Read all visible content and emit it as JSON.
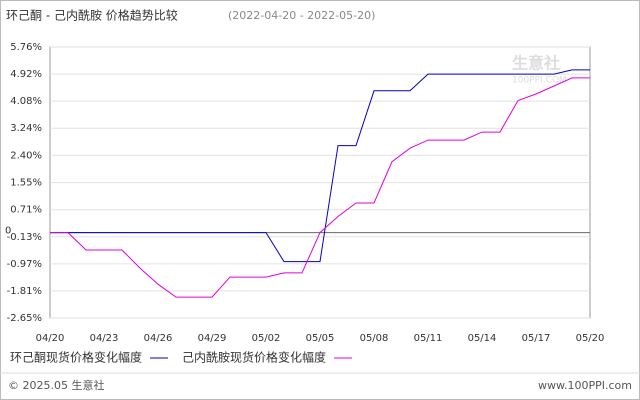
{
  "chart_data": {
    "type": "line",
    "title": "环己酮 - 己内酰胺 价格趋势比较",
    "subtitle": "(2022-04-20 - 2022-05-20)",
    "categories": [
      "04/20",
      null,
      null,
      "04/23",
      null,
      null,
      "04/26",
      null,
      null,
      "04/29",
      null,
      null,
      "05/02",
      null,
      null,
      "05/05",
      null,
      null,
      "05/08",
      null,
      null,
      "05/11",
      null,
      null,
      "05/14",
      null,
      null,
      "05/17",
      null,
      null,
      "05/20"
    ],
    "series": [
      {
        "name": "环己酮现货价格变化幅度",
        "color": "#0000cc",
        "values": [
          0,
          0,
          0,
          0,
          0,
          0,
          0,
          0,
          0,
          0,
          0,
          0,
          0,
          -0.9,
          -0.9,
          -0.9,
          2.7,
          2.7,
          4.4,
          4.4,
          4.4,
          4.92,
          4.92,
          4.92,
          4.92,
          4.92,
          4.92,
          4.92,
          4.92,
          5.05,
          5.05
        ]
      },
      {
        "name": "己内酰胺现货价格变化幅度",
        "color": "#e000e0",
        "values": [
          0,
          0,
          -0.54,
          -0.54,
          -0.54,
          -1.1,
          -1.6,
          -2.0,
          -2.0,
          -2.0,
          -1.38,
          -1.38,
          -1.38,
          -1.25,
          -1.25,
          0,
          0.5,
          0.92,
          0.92,
          2.2,
          2.62,
          2.87,
          2.87,
          2.87,
          3.12,
          3.12,
          4.1,
          4.3,
          4.55,
          4.8,
          4.8
        ]
      }
    ],
    "ylim": [
      -2.65,
      5.76
    ],
    "yticks": [
      {
        "value": -2.65,
        "label": "-2.65%"
      },
      {
        "value": -1.81,
        "label": "-1.81%"
      },
      {
        "value": -0.97,
        "label": "-0.97%"
      },
      {
        "value": -0.13,
        "label": "-0.13%"
      },
      {
        "value": 0.71,
        "label": "0.71%"
      },
      {
        "value": 1.55,
        "label": "1.55%"
      },
      {
        "value": 2.4,
        "label": "2.40%"
      },
      {
        "value": 3.24,
        "label": "3.24%"
      },
      {
        "value": 4.08,
        "label": "4.08%"
      },
      {
        "value": 4.92,
        "label": "4.92%"
      },
      {
        "value": 5.76,
        "label": "5.76%"
      }
    ],
    "zero_tick": 0,
    "grid": true,
    "watermark": {
      "name": "生意社",
      "site": "100PPI.COM"
    },
    "footer": {
      "copyright": "© 2025.05 生意社",
      "site": "www.100PPI.com"
    }
  }
}
